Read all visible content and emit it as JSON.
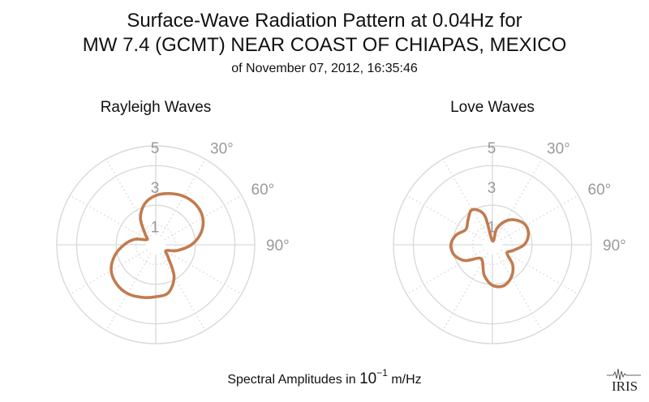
{
  "title_line1": "Surface-Wave Radiation Pattern at 0.04Hz for",
  "title_line2": "MW 7.4 (GCMT) NEAR COAST OF CHIAPAS, MEXICO",
  "title_line3": "of November 07, 2012, 16:35:46",
  "footer": {
    "prefix": "Spectral Amplitudes in ",
    "base": "10",
    "exponent": "−1",
    "unit": " m/Hz"
  },
  "logo_text": "IRIS",
  "colors": {
    "pattern": "#c27b4f",
    "grid": "#d9d9d9",
    "tick_text": "#9a9a9a",
    "title": "#111111"
  },
  "chart_data": [
    {
      "type": "polar",
      "title": "Rayleigh Waves",
      "r_ticks": [
        1,
        3,
        5
      ],
      "r_tick_labels": [
        "1",
        "3",
        "5"
      ],
      "r_max": 5,
      "theta_ticks": [
        30,
        60,
        90
      ],
      "theta_tick_labels": [
        "30°",
        "60°",
        "90°"
      ],
      "theta_zero": "top",
      "theta_direction": "clockwise",
      "grid": true,
      "series": [
        {
          "theta_deg": [
            0,
            15,
            30,
            45,
            60,
            75,
            90,
            105,
            120,
            135,
            150,
            165,
            180,
            195,
            210,
            225,
            240,
            255,
            270,
            285,
            300,
            315,
            330,
            345
          ],
          "r": [
            2.49,
            2.68,
            2.83,
            2.87,
            2.74,
            2.37,
            1.8,
            1.12,
            0.6,
            0.88,
            1.85,
            2.5,
            2.63,
            2.75,
            2.85,
            2.8,
            2.6,
            2.15,
            1.6,
            1.08,
            0.52,
            0.75,
            1.55,
            2.15
          ]
        }
      ]
    },
    {
      "type": "polar",
      "title": "Love Waves",
      "r_ticks": [
        1,
        3,
        5
      ],
      "r_tick_labels": [
        "1",
        "3",
        "5"
      ],
      "r_max": 5,
      "theta_ticks": [
        30,
        60,
        90
      ],
      "theta_tick_labels": [
        "30°",
        "60°",
        "90°"
      ],
      "theta_zero": "top",
      "theta_direction": "clockwise",
      "grid": true,
      "series": [
        {
          "theta_deg": [
            0,
            15,
            30,
            45,
            60,
            75,
            90,
            105,
            120,
            135,
            150,
            165,
            180,
            195,
            210,
            225,
            240,
            255,
            270,
            285,
            300,
            315,
            330,
            345
          ],
          "r": [
            0.2,
            0.85,
            1.4,
            1.75,
            1.95,
            1.88,
            1.6,
            1.1,
            0.85,
            1.45,
            1.9,
            2.15,
            2.05,
            1.6,
            1.0,
            0.95,
            1.6,
            2.0,
            2.1,
            1.9,
            1.55,
            1.75,
            2.05,
            1.55
          ]
        }
      ]
    }
  ]
}
